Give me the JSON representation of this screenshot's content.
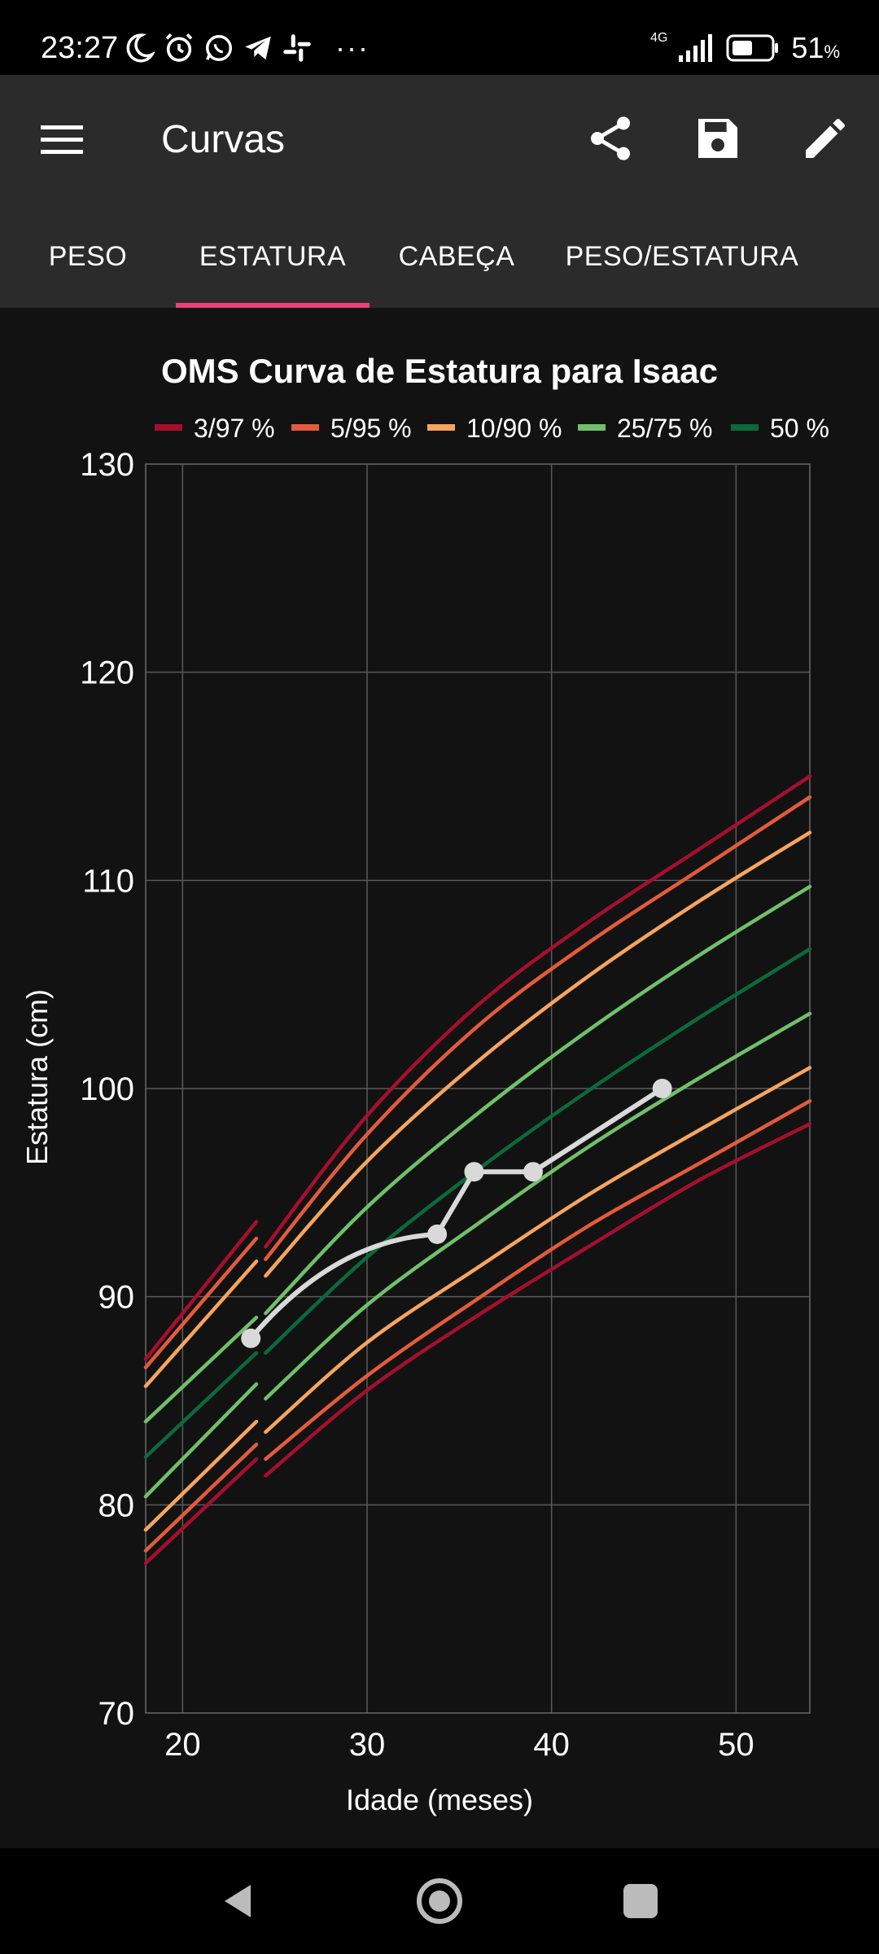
{
  "status_bar": {
    "time": "23:27",
    "battery_percent": "51",
    "battery_unit": "%",
    "network": "4G",
    "more": "···"
  },
  "app_bar": {
    "title": "Curvas",
    "icons": [
      "menu-icon",
      "share-icon",
      "save-icon",
      "edit-icon"
    ]
  },
  "tabs": [
    {
      "label": "PESO",
      "selected": false
    },
    {
      "label": "ESTATURA",
      "selected": true
    },
    {
      "label": "CABEÇA",
      "selected": false
    },
    {
      "label": "PESO/ESTATURA",
      "selected": false
    }
  ],
  "colors": {
    "accent": "#ec407a",
    "p3_97": "#a50f2d",
    "p5_95": "#e35b3b",
    "p10_90": "#f6a460",
    "p25_75": "#6fc06a",
    "p50": "#0b6a3a",
    "child": "#d9d9d9"
  },
  "chart_data": {
    "type": "line",
    "title": "OMS Curva de Estatura para Isaac",
    "xlabel": "Idade (meses)",
    "ylabel": "Estatura (cm)",
    "xlim": [
      18,
      54
    ],
    "ylim": [
      70,
      130
    ],
    "x_ticks": [
      20,
      30,
      40,
      50
    ],
    "y_ticks": [
      70,
      80,
      90,
      100,
      110,
      120,
      130
    ],
    "grid": true,
    "legend_position": "top",
    "legend": [
      {
        "label": "3/97 %",
        "color": "#a50f2d"
      },
      {
        "label": "5/95 %",
        "color": "#e35b3b"
      },
      {
        "label": "10/90 %",
        "color": "#f6a460"
      },
      {
        "label": "25/75 %",
        "color": "#6fc06a"
      },
      {
        "label": "50 %",
        "color": "#0b6a3a"
      }
    ],
    "percentile_curves": [
      {
        "group": "3/97 %",
        "color": "#a50f2d",
        "x": [
          18,
          24
        ],
        "y": [
          87.0,
          93.6
        ]
      },
      {
        "group": "3/97 %",
        "color": "#a50f2d",
        "x": [
          24.5,
          30,
          36,
          42,
          48,
          54
        ],
        "y": [
          92.4,
          98.7,
          104.0,
          108.0,
          111.5,
          115.0
        ]
      },
      {
        "group": "5/95 %",
        "color": "#e35b3b",
        "x": [
          18,
          24
        ],
        "y": [
          86.6,
          92.8
        ]
      },
      {
        "group": "5/95 %",
        "color": "#e35b3b",
        "x": [
          24.5,
          30,
          36,
          42,
          48,
          54
        ],
        "y": [
          91.8,
          97.8,
          103.0,
          107.0,
          110.5,
          114.0
        ]
      },
      {
        "group": "10/90 %",
        "color": "#f6a460",
        "x": [
          18,
          24
        ],
        "y": [
          85.7,
          91.7
        ]
      },
      {
        "group": "10/90 %",
        "color": "#f6a460",
        "x": [
          24.5,
          30,
          36,
          42,
          48,
          54
        ],
        "y": [
          91.0,
          96.5,
          101.3,
          105.4,
          109.0,
          112.3
        ]
      },
      {
        "group": "25/75 %",
        "color": "#6fc06a",
        "x": [
          18,
          24
        ],
        "y": [
          84.0,
          89.0
        ]
      },
      {
        "group": "25/75 %",
        "color": "#6fc06a",
        "x": [
          24.5,
          30,
          36,
          42,
          48,
          54
        ],
        "y": [
          89.2,
          94.3,
          98.8,
          102.8,
          106.4,
          109.7
        ]
      },
      {
        "group": "50 %",
        "color": "#0b6a3a",
        "x": [
          18,
          24
        ],
        "y": [
          82.3,
          87.3
        ]
      },
      {
        "group": "50 %",
        "color": "#0b6a3a",
        "x": [
          24.5,
          30,
          36,
          42,
          48,
          54
        ],
        "y": [
          87.3,
          91.9,
          96.1,
          99.9,
          103.4,
          106.7
        ]
      },
      {
        "group": "25/75 %",
        "color": "#6fc06a",
        "x": [
          18,
          24
        ],
        "y": [
          80.4,
          85.8
        ]
      },
      {
        "group": "25/75 %",
        "color": "#6fc06a",
        "x": [
          24.5,
          30,
          36,
          42,
          48,
          54
        ],
        "y": [
          85.1,
          89.6,
          93.5,
          97.2,
          100.5,
          103.6
        ]
      },
      {
        "group": "10/90 %",
        "color": "#f6a460",
        "x": [
          18,
          24
        ],
        "y": [
          78.8,
          84.0
        ]
      },
      {
        "group": "10/90 %",
        "color": "#f6a460",
        "x": [
          24.5,
          30,
          36,
          42,
          48,
          54
        ],
        "y": [
          83.5,
          87.8,
          91.4,
          94.9,
          98.0,
          101.0
        ]
      },
      {
        "group": "5/95 %",
        "color": "#e35b3b",
        "x": [
          18,
          24
        ],
        "y": [
          77.8,
          82.9
        ]
      },
      {
        "group": "5/95 %",
        "color": "#e35b3b",
        "x": [
          24.5,
          30,
          36,
          42,
          48,
          54
        ],
        "y": [
          82.2,
          86.2,
          89.9,
          93.4,
          96.4,
          99.4
        ]
      },
      {
        "group": "3/97 %",
        "color": "#a50f2d",
        "x": [
          18,
          24
        ],
        "y": [
          77.2,
          82.2
        ]
      },
      {
        "group": "3/97 %",
        "color": "#a50f2d",
        "x": [
          24.5,
          30,
          36,
          42,
          48,
          54
        ],
        "y": [
          81.4,
          85.5,
          89.1,
          92.4,
          95.6,
          98.3
        ]
      }
    ],
    "series": [
      {
        "x": [
          23.7,
          33.8,
          35.8,
          39.0,
          46.0
        ],
        "y": [
          88.0,
          93.0,
          96.0,
          96.0,
          100.0
        ],
        "color": "#d9d9d9"
      }
    ]
  }
}
